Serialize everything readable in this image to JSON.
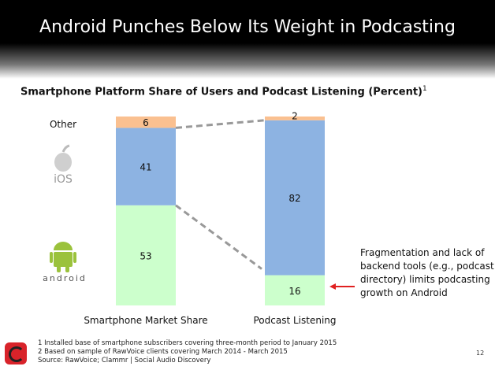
{
  "header": {
    "title": "Android Punches Below Its Weight in Podcasting"
  },
  "chart_data": {
    "type": "bar",
    "stacked": true,
    "title": "Smartphone Platform Share of Users and Podcast Listening (Percent)",
    "title_footnote": "1",
    "categories": [
      "Smartphone Market Share",
      "Podcast Listening"
    ],
    "series": [
      {
        "name": "Android",
        "values": [
          53,
          16
        ],
        "color": "#ccffcc"
      },
      {
        "name": "iOS",
        "values": [
          41,
          82
        ],
        "color": "#8db3e2"
      },
      {
        "name": "Other",
        "values": [
          6,
          2
        ],
        "color": "#fac090"
      }
    ],
    "ylim": [
      0,
      100
    ],
    "legend_labels": {
      "other": "Other",
      "ios": "iOS",
      "android": "android"
    },
    "annotation": "Fragmentation and lack of backend tools (e.g., podcast directory) limits podcasting growth on Android",
    "annotation_color": "#e02020"
  },
  "footnotes": [
    "1 Installed base of smartphone subscribers covering three-month period to January 2015",
    "2 Based on sample of RawVoice clients covering March 2014 - March 2015",
    "Source: RawVoice; Clammr | Social Audio Discovery"
  ],
  "page_number": "12"
}
